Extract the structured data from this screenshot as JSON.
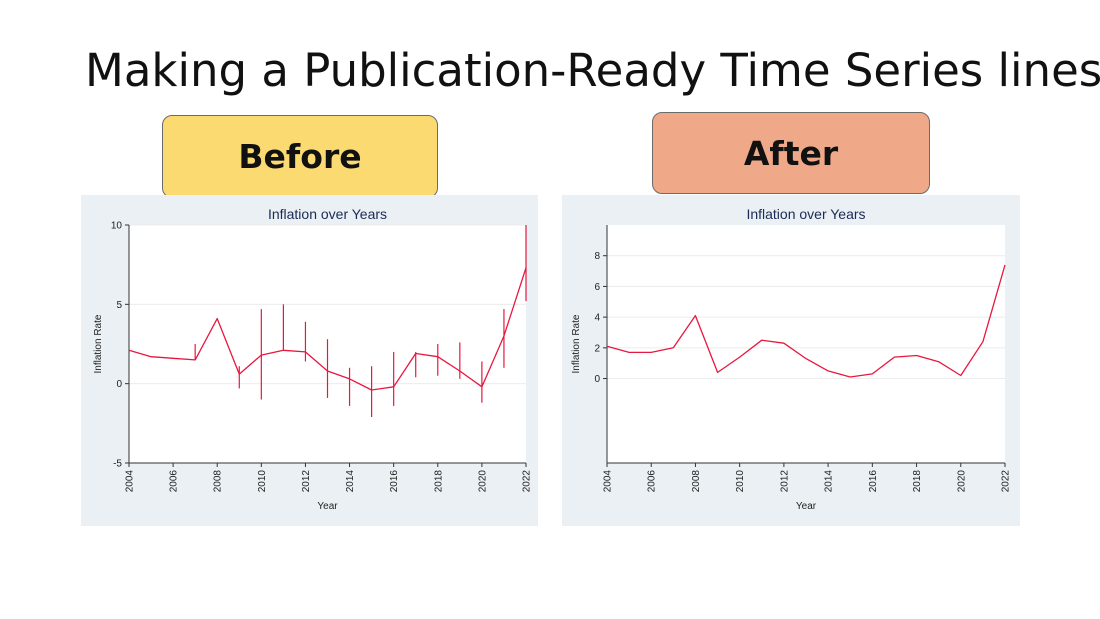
{
  "slide": {
    "title": "Making a Publication-Ready Time Series lines"
  },
  "labels": {
    "before": "Before",
    "after": "After",
    "before_color": "#fcda72",
    "after_color": "#f0a988"
  },
  "colors": {
    "panel_bg": "#eaf0f4",
    "line": "#e8173f",
    "title_text": "#1a2b55"
  },
  "chart_data": [
    {
      "id": "before",
      "type": "line",
      "title": "Inflation over Years",
      "xlabel": "Year",
      "ylabel": "Inflation Rate",
      "xlim": [
        2004,
        2022
      ],
      "ylim": [
        -5,
        10
      ],
      "xticks": [
        2004,
        2006,
        2008,
        2010,
        2012,
        2014,
        2016,
        2018,
        2020,
        2022
      ],
      "yticks": [
        -5,
        0,
        5,
        10
      ],
      "grid": true,
      "x": [
        2004,
        2005,
        2006,
        2007,
        2008,
        2009,
        2010,
        2011,
        2012,
        2013,
        2014,
        2015,
        2016,
        2017,
        2018,
        2019,
        2020,
        2021,
        2022
      ],
      "values": [
        2.1,
        1.7,
        1.6,
        1.5,
        4.1,
        0.6,
        1.8,
        2.1,
        2.0,
        0.8,
        0.3,
        -0.4,
        -0.2,
        1.9,
        1.7,
        0.8,
        -0.2,
        3.0,
        7.3
      ],
      "spikes": [
        {
          "x": 2007,
          "low": 1.5,
          "high": 2.5
        },
        {
          "x": 2009,
          "low": -0.3,
          "high": 1.1
        },
        {
          "x": 2010,
          "low": -1.0,
          "high": 4.7
        },
        {
          "x": 2011,
          "low": 2.1,
          "high": 5.0
        },
        {
          "x": 2012,
          "low": 1.4,
          "high": 3.9
        },
        {
          "x": 2013,
          "low": -0.9,
          "high": 2.8
        },
        {
          "x": 2014,
          "low": -1.4,
          "high": 1.0
        },
        {
          "x": 2015,
          "low": -2.1,
          "high": 1.1
        },
        {
          "x": 2016,
          "low": -1.4,
          "high": 2.0
        },
        {
          "x": 2017,
          "low": 0.4,
          "high": 2.0
        },
        {
          "x": 2018,
          "low": 0.5,
          "high": 2.5
        },
        {
          "x": 2019,
          "low": 0.3,
          "high": 2.6
        },
        {
          "x": 2020,
          "low": -1.2,
          "high": 1.4
        },
        {
          "x": 2021,
          "low": 1.0,
          "high": 4.7
        },
        {
          "x": 2022,
          "low": 5.2,
          "high": 10.0
        }
      ]
    },
    {
      "id": "after",
      "type": "line",
      "title": "Inflation over Years",
      "xlabel": "Year",
      "ylabel": "Inflation Rate",
      "xlim": [
        2004,
        2022
      ],
      "ylim": [
        -5.5,
        10
      ],
      "xticks": [
        2004,
        2006,
        2008,
        2010,
        2012,
        2014,
        2016,
        2018,
        2020,
        2022
      ],
      "yticks": [
        0,
        2,
        4,
        6,
        8
      ],
      "grid": true,
      "x": [
        2004,
        2005,
        2006,
        2007,
        2008,
        2009,
        2010,
        2011,
        2012,
        2013,
        2014,
        2015,
        2016,
        2017,
        2018,
        2019,
        2020,
        2021,
        2022
      ],
      "values": [
        2.1,
        1.7,
        1.7,
        2.0,
        4.1,
        0.4,
        1.4,
        2.5,
        2.3,
        1.3,
        0.5,
        0.1,
        0.3,
        1.4,
        1.5,
        1.1,
        0.2,
        2.4,
        7.4
      ]
    }
  ]
}
